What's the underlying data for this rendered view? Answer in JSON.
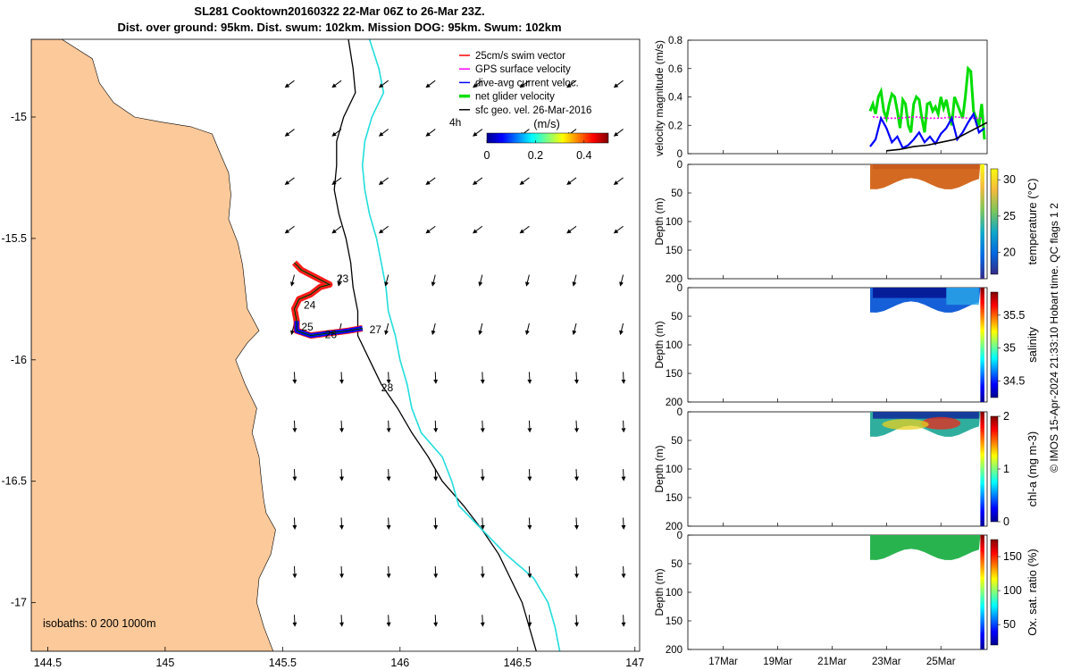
{
  "header": {
    "line1": "SL281 Cooktown20160322 22-Mar 06Z to 26-Mar 23Z.",
    "line2": "Dist. over ground: 95km. Dist. swum: 102km. Mission DOG: 95km. Swum: 102km"
  },
  "credit": "© IMOS 15-Apr-2024 21:33:10 Hobart time. QC flags 1  2",
  "chart_data": [
    {
      "type": "map",
      "xticks": [
        "144.5",
        "145",
        "145.5",
        "146",
        "146.5",
        "147"
      ],
      "yticks": [
        "-15",
        "-15.5",
        "-16",
        "-16.5",
        "-17"
      ],
      "xlim": [
        144.43,
        147.02
      ],
      "ylim": [
        -17.2,
        -14.68
      ],
      "legend": {
        "position": "top-right",
        "entries": [
          "25cm/s swim vector",
          "GPS surface velocity",
          "dive-avg current veloc.",
          "net glider velocity",
          "sfc geo. vel. 26-Mar-2016"
        ],
        "colors": [
          "#ff0000",
          "#ff00ff",
          "#0000ff",
          "#00dd00",
          "#000000"
        ],
        "tag": "4h"
      },
      "colorbar": {
        "label": "(m/s)",
        "ticks": [
          "0",
          "0.2",
          "0.4"
        ],
        "range": [
          0,
          0.5
        ]
      },
      "isobath_note": "isobaths: 0   200  1000m",
      "day_labels": [
        {
          "text": "23",
          "lon": 145.73,
          "lat": -15.68
        },
        {
          "text": "24",
          "lon": 145.59,
          "lat": -15.79
        },
        {
          "text": "25",
          "lon": 145.58,
          "lat": -15.88
        },
        {
          "text": "26",
          "lon": 145.68,
          "lat": -15.91
        },
        {
          "text": "27",
          "lon": 145.87,
          "lat": -15.89
        },
        {
          "text": "28",
          "lon": 145.92,
          "lat": -16.13
        }
      ],
      "track": [
        [
          145.55,
          -15.6
        ],
        [
          145.58,
          -15.63
        ],
        [
          145.64,
          -15.66
        ],
        [
          145.7,
          -15.69
        ],
        [
          145.66,
          -15.7
        ],
        [
          145.62,
          -15.73
        ],
        [
          145.57,
          -15.75
        ],
        [
          145.55,
          -15.79
        ],
        [
          145.56,
          -15.84
        ],
        [
          145.56,
          -15.88
        ],
        [
          145.62,
          -15.9
        ],
        [
          145.7,
          -15.89
        ],
        [
          145.78,
          -15.88
        ],
        [
          145.84,
          -15.87
        ]
      ],
      "coastline": [
        [
          144.43,
          -14.68
        ],
        [
          144.56,
          -14.68
        ],
        [
          144.69,
          -14.76
        ],
        [
          144.72,
          -14.86
        ],
        [
          144.78,
          -14.94
        ],
        [
          144.87,
          -15.0
        ],
        [
          144.98,
          -15.02
        ],
        [
          145.11,
          -15.04
        ],
        [
          145.2,
          -15.07
        ],
        [
          145.23,
          -15.14
        ],
        [
          145.27,
          -15.23
        ],
        [
          145.28,
          -15.32
        ],
        [
          145.27,
          -15.42
        ],
        [
          145.31,
          -15.52
        ],
        [
          145.33,
          -15.61
        ],
        [
          145.34,
          -15.7
        ],
        [
          145.35,
          -15.79
        ],
        [
          145.4,
          -15.88
        ],
        [
          145.35,
          -15.93
        ],
        [
          145.3,
          -16.0
        ],
        [
          145.34,
          -16.1
        ],
        [
          145.39,
          -16.2
        ],
        [
          145.37,
          -16.3
        ],
        [
          145.4,
          -16.4
        ],
        [
          145.41,
          -16.5
        ],
        [
          145.42,
          -16.58
        ],
        [
          145.43,
          -16.63
        ],
        [
          145.47,
          -16.7
        ],
        [
          145.45,
          -16.8
        ],
        [
          145.4,
          -16.9
        ],
        [
          145.39,
          -17.0
        ],
        [
          145.42,
          -17.1
        ],
        [
          145.46,
          -17.2
        ],
        [
          144.43,
          -17.2
        ]
      ],
      "isobath_200m": [
        [
          145.78,
          -14.68
        ],
        [
          145.8,
          -14.8
        ],
        [
          145.81,
          -14.9
        ],
        [
          145.76,
          -15.0
        ],
        [
          145.73,
          -15.1
        ],
        [
          145.73,
          -15.2
        ],
        [
          145.72,
          -15.3
        ],
        [
          145.74,
          -15.4
        ],
        [
          145.77,
          -15.5
        ],
        [
          145.79,
          -15.6
        ],
        [
          145.8,
          -15.7
        ],
        [
          145.82,
          -15.8
        ],
        [
          145.82,
          -15.9
        ],
        [
          145.87,
          -16.0
        ],
        [
          145.92,
          -16.1
        ],
        [
          145.99,
          -16.2
        ],
        [
          146.05,
          -16.3
        ],
        [
          146.12,
          -16.4
        ],
        [
          146.18,
          -16.5
        ],
        [
          146.27,
          -16.6
        ],
        [
          146.35,
          -16.7
        ],
        [
          146.42,
          -16.8
        ],
        [
          146.47,
          -16.9
        ],
        [
          146.52,
          -17.0
        ],
        [
          146.55,
          -17.1
        ],
        [
          146.58,
          -17.2
        ]
      ],
      "isobath_1000m": [
        [
          145.87,
          -14.68
        ],
        [
          145.91,
          -14.8
        ],
        [
          145.93,
          -14.9
        ],
        [
          145.88,
          -15.0
        ],
        [
          145.85,
          -15.1
        ],
        [
          145.84,
          -15.2
        ],
        [
          145.85,
          -15.3
        ],
        [
          145.87,
          -15.4
        ],
        [
          145.9,
          -15.5
        ],
        [
          145.92,
          -15.6
        ],
        [
          145.94,
          -15.7
        ],
        [
          145.95,
          -15.8
        ],
        [
          145.98,
          -15.9
        ],
        [
          146.0,
          -16.0
        ],
        [
          146.03,
          -16.1
        ],
        [
          146.05,
          -16.2
        ],
        [
          146.09,
          -16.3
        ],
        [
          146.18,
          -16.4
        ],
        [
          146.22,
          -16.5
        ],
        [
          146.25,
          -16.6
        ],
        [
          146.35,
          -16.7
        ],
        [
          146.45,
          -16.8
        ],
        [
          146.57,
          -16.9
        ],
        [
          146.63,
          -17.0
        ],
        [
          146.66,
          -17.1
        ],
        [
          146.68,
          -17.2
        ]
      ]
    },
    {
      "type": "line",
      "ylabel": "velocity magnitude (m/s)",
      "ylim": [
        0,
        0.8
      ],
      "yticks": [
        "0",
        "0.2",
        "0.4",
        "0.6",
        "0.8"
      ],
      "x_range_days": [
        15.7,
        26.7
      ],
      "series": [
        {
          "name": "net glider velocity",
          "color": "#00dd00",
          "x": [
            22.4,
            22.5,
            22.6,
            22.7,
            22.8,
            22.9,
            23.0,
            23.1,
            23.2,
            23.3,
            23.4,
            23.5,
            23.6,
            23.7,
            23.8,
            23.9,
            24.0,
            24.1,
            24.2,
            24.3,
            24.4,
            24.5,
            24.6,
            24.7,
            24.8,
            24.9,
            25.0,
            25.1,
            25.2,
            25.3,
            25.4,
            25.5,
            25.6,
            25.7,
            25.8,
            25.9,
            26.0,
            26.1,
            26.2,
            26.3,
            26.4,
            26.5,
            26.6
          ],
          "y": [
            0.3,
            0.35,
            0.28,
            0.4,
            0.44,
            0.3,
            0.25,
            0.35,
            0.42,
            0.4,
            0.3,
            0.18,
            0.38,
            0.35,
            0.2,
            0.15,
            0.35,
            0.4,
            0.38,
            0.25,
            0.15,
            0.35,
            0.36,
            0.3,
            0.33,
            0.28,
            0.4,
            0.32,
            0.38,
            0.28,
            0.2,
            0.4,
            0.35,
            0.3,
            0.25,
            0.4,
            0.6,
            0.58,
            0.3,
            0.25,
            0.2,
            0.35,
            0.1
          ]
        },
        {
          "name": "GPS surface velocity",
          "color": "#ff00ff",
          "x": [
            22.5,
            23.0,
            23.5,
            24.0,
            24.5,
            25.0,
            25.5,
            26.0,
            26.5
          ],
          "y": [
            0.26,
            0.25,
            0.25,
            0.26,
            0.25,
            0.25,
            0.26,
            0.25,
            0.25
          ]
        },
        {
          "name": "dive-avg current veloc.",
          "color": "#0000ff",
          "x": [
            22.4,
            22.6,
            22.8,
            23.0,
            23.2,
            23.4,
            23.6,
            23.8,
            24.0,
            24.2,
            24.4,
            24.6,
            24.8,
            25.0,
            25.2,
            25.4,
            25.6,
            25.8,
            26.0,
            26.2,
            26.4,
            26.6
          ],
          "y": [
            0.05,
            0.1,
            0.25,
            0.18,
            0.08,
            0.12,
            0.04,
            0.06,
            0.1,
            0.15,
            0.08,
            0.12,
            0.07,
            0.14,
            0.18,
            0.25,
            0.1,
            0.15,
            0.22,
            0.28,
            0.15,
            0.18
          ]
        },
        {
          "name": "sfc geo. vel.",
          "color": "#000000",
          "x": [
            23.0,
            23.5,
            24.0,
            24.5,
            25.0,
            25.5,
            26.0,
            26.5,
            26.7
          ],
          "y": [
            0.02,
            0.03,
            0.05,
            0.06,
            0.08,
            0.1,
            0.15,
            0.2,
            0.22
          ]
        }
      ]
    },
    {
      "type": "heatmap",
      "ylabel": "Depth (m)",
      "clabel": "temperature (°C)",
      "yticks": [
        "0",
        "50",
        "100",
        "150",
        "200"
      ],
      "cticks": [
        "20",
        "25",
        "30"
      ],
      "crange": [
        17,
        31.5
      ]
    },
    {
      "type": "heatmap",
      "ylabel": "Depth (m)",
      "clabel": "salinity",
      "yticks": [
        "0",
        "50",
        "100",
        "150",
        "200"
      ],
      "cticks": [
        "34.5",
        "35",
        "35.5"
      ],
      "crange": [
        34.25,
        35.85
      ]
    },
    {
      "type": "heatmap",
      "ylabel": "Depth (m)",
      "clabel": "chl-a (mg m-3)",
      "yticks": [
        "0",
        "50",
        "100",
        "150",
        "200"
      ],
      "cticks": [
        "0",
        "1",
        "2"
      ],
      "crange": [
        0,
        2
      ]
    },
    {
      "type": "heatmap",
      "ylabel": "Depth (m)",
      "clabel": "Ox. sat. ratio (%)",
      "yticks": [
        "0",
        "50",
        "100",
        "150",
        "200"
      ],
      "cticks": [
        "50",
        "100",
        "150"
      ],
      "crange": [
        20,
        175
      ],
      "xticks": [
        "17Mar",
        "19Mar",
        "21Mar",
        "23Mar",
        "25Mar"
      ]
    }
  ]
}
